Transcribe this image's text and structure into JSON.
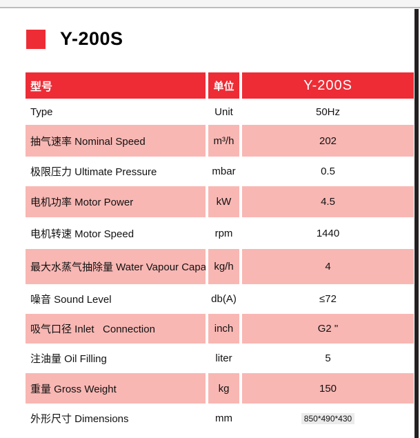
{
  "page": {
    "title": "Y-200S"
  },
  "colors": {
    "accent_red": "#ee2c35",
    "row_pink": "#f8b7b3",
    "scrollbar_dark": "#242021",
    "topbar_gray": "#f5f5f6",
    "highlight_gray": "#ebebeb"
  },
  "table": {
    "header": {
      "model_col": "型号",
      "unit_col": "单位",
      "value_col": "Y-200S"
    },
    "rows": [
      {
        "label": "Type",
        "unit": "Unit",
        "value": "50Hz",
        "shade": false
      },
      {
        "label": "抽气速率 Nominal Speed",
        "unit": "m³/h",
        "value": "202",
        "shade": true
      },
      {
        "label": "极限压力 Ultimate Pressure",
        "unit": "mbar",
        "value": "0.5",
        "shade": false
      },
      {
        "label": "电机功率 Motor Power",
        "unit": "kW",
        "value": "4.5",
        "shade": true
      },
      {
        "label": "电机转速 Motor Speed",
        "unit": "rpm",
        "value": "1440",
        "shade": false
      },
      {
        "label": "最大水蒸气抽除量 Water Vapour Capacity",
        "unit": "kg/h",
        "value": "4",
        "shade": true
      },
      {
        "label": "噪音 Sound Level",
        "unit": "db(A)",
        "value": "≤72",
        "shade": false
      },
      {
        "label": "吸气口径 Inlet   Connection",
        "unit": "inch",
        "value": "G2 \"",
        "shade": true
      },
      {
        "label": "注油量 Oil Filling",
        "unit": "liter",
        "value": "5",
        "shade": false
      },
      {
        "label": "重量 Gross Weight",
        "unit": "kg",
        "value": "150",
        "shade": true
      },
      {
        "label": "外形尺寸 Dimensions",
        "unit": "mm",
        "value": "850*490*430",
        "shade": false,
        "value_small": true
      }
    ]
  }
}
